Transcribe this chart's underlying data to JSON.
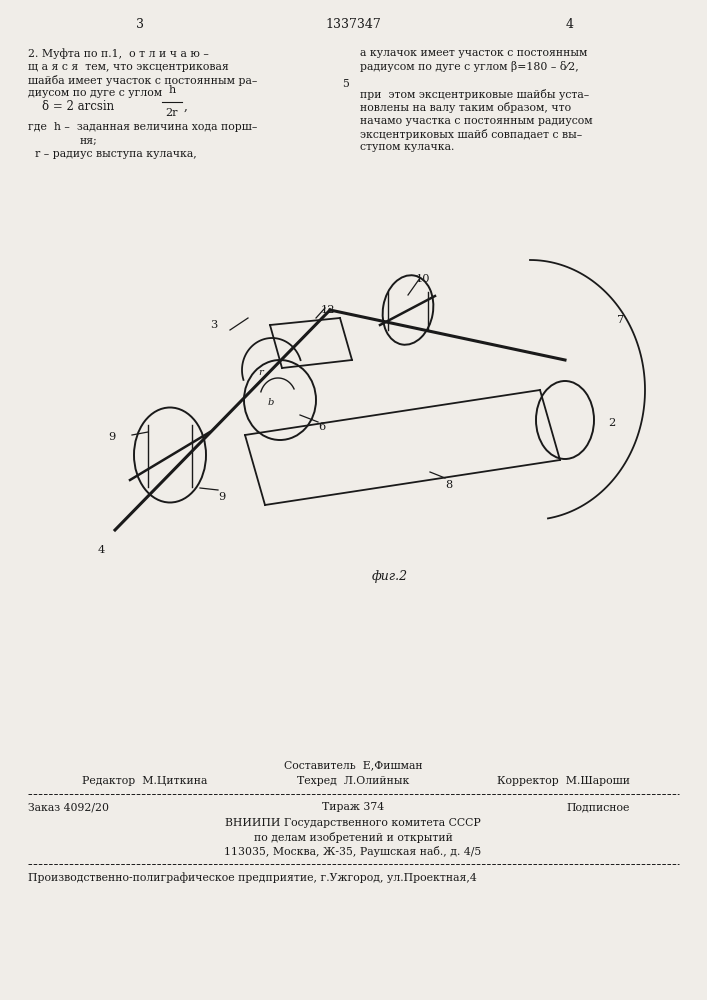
{
  "bg_color": "#f0ede8",
  "page_width": 7.07,
  "page_height": 10.0,
  "header_patent_number": "1337347",
  "header_page_left": "3",
  "header_page_right": "4",
  "text_col_left": [
    "2. Муфта по п.1,  о т л и ч а ю –",
    "щ а я с я  тем, что эксцентриковая",
    "шайба имеет участок с постоянным ра–",
    "диусом по дуге с углом"
  ],
  "text_col_left2": [
    "где  h –  заданная величина хода порш–",
    "ня;",
    "  r – радиус выступа кулачка,"
  ],
  "text_col_right": [
    "а кулачок имеет участок с постоянным",
    "радиусом по дуге с углом β=180 – δ⁄2,",
    "при  этом эксцентриковые шайбы уста–",
    "новлены на валу таким образом, что",
    "начамо участка с постоянным радиусом",
    "эксцентриковых шайб совпадает с вы–",
    "ступом кулачка."
  ],
  "fig_caption": "фиг.2",
  "footer_sestavitel": "Составитель  Е,Фишман",
  "footer_tehred": "Техред  Л.Олийнык",
  "footer_redaktor": "Редактор  М.Циткина",
  "footer_korrektor": "Корректор  М.Шароши",
  "footer_zakaz": "Заказ 4092/20",
  "footer_tirazh": "Тираж 374",
  "footer_podpisnoe": "Подписное",
  "footer_vniip1": "ВНИИПИ Государственного комитета СССР",
  "footer_vniip2": "по делам изобретений и открытий",
  "footer_vniip3": "113035, Москва, Ж-35, Раушская наб., д. 4/5",
  "footer_poligraf": "Производственно-полиграфическое предприятие, г.Ужгород, ул.Проектная,4"
}
